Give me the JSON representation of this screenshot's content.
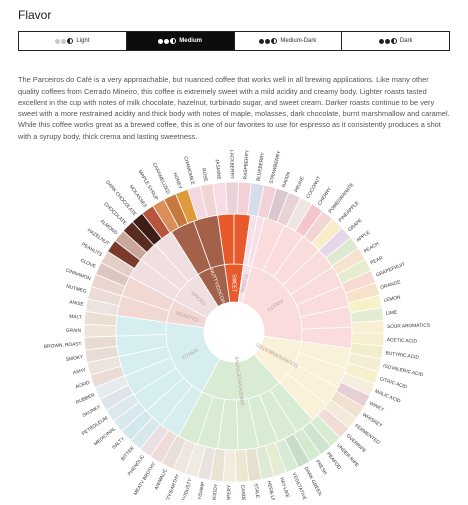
{
  "page": {
    "title": "Flavor"
  },
  "roast": {
    "options": [
      {
        "label": "Light",
        "dots": [
          "#c8c8c8",
          "#c8c8c8",
          "half"
        ],
        "active": false
      },
      {
        "label": "Medium",
        "dots": [
          "#ffffff",
          "#ffffff",
          "half"
        ],
        "active": true
      },
      {
        "label": "Medium-Dark",
        "dots": [
          "#222222",
          "#222222",
          "half"
        ],
        "active": false
      },
      {
        "label": "Dark",
        "dots": [
          "#222222",
          "#222222",
          "half"
        ],
        "active": false
      }
    ]
  },
  "description": "The Parceiros do Café is a very approachable, but nuanced coffee that works well in all brewing applications. Like many other quality coffees from Cerrado Mineiro, this coffee is extremely sweet with a mild acidity and creamy body. Lighter roasts tasted excellent in the cup with notes of milk chocolate, hazelnut, turbinado sugar, and sweet cream. Darker roasts continue to be very sweet with a more restrained acidity and thick body with notes of maple, molasses, dark chocolate, burnt marshmallow and caramel. While this coffee works great as a brewed coffee, this is one of our favorites to use for espresso as it consistently produces a shot with a syrupy body, thick crema and lasting sweetness.",
  "wheel": {
    "inner": [
      {
        "label": "SWEET",
        "color": "#e85a2c",
        "highlight": true
      },
      {
        "label": "NUTTY/COCOA",
        "color": "#a4614a",
        "highlight": true
      },
      {
        "label": "SPICES",
        "color": "#efdfe0",
        "highlight": false
      },
      {
        "label": "ROASTED",
        "color": "#f1d8d3",
        "highlight": false
      },
      {
        "label": "OTHER",
        "color": "#d6eef0",
        "highlight": false
      },
      {
        "label": "GREEN/VEGETATIVE",
        "color": "#d8ecd4",
        "highlight": false
      },
      {
        "label": "SOUR/FERMENTED",
        "color": "#f9f1d8",
        "highlight": false
      },
      {
        "label": "FRUITY",
        "color": "#fbdcdc",
        "highlight": false
      },
      {
        "label": "FLORAL",
        "color": "#f8e0ea",
        "highlight": false
      }
    ],
    "outer_labels": [
      "CHAMOMILE",
      "ROSE",
      "JASMINE",
      "BLACKBERRY",
      "RASPBERRY",
      "BLUEBERRY",
      "STRAWBERRY",
      "RAISIN",
      "PRUNE",
      "COCONUT",
      "CHERRY",
      "POMEGRANATE",
      "PINEAPPLE",
      "GRAPE",
      "APPLE",
      "PEACH",
      "PEAR",
      "GRAPEFRUIT",
      "ORANGE",
      "LEMON",
      "LIME",
      "SOUR AROMATICS",
      "ACETIC ACID",
      "BUTYRIC ACID",
      "ISOVALERIC ACID",
      "CITRIC ACID",
      "MALIC ACID",
      "WINEY",
      "WHISKEY",
      "FERMENTED",
      "OVERRIPE",
      "UNDER RIPE",
      "PEAPOD",
      "FRESH",
      "DARK GREEN",
      "VEGETATIVE",
      "HAY-LIKE",
      "HERB-LIKE",
      "STALE",
      "CARDBOARD",
      "PAPERY",
      "WOODY",
      "MOLDY/DAMP",
      "MUSTY/DUSTY",
      "MUSTY/EARTHY",
      "ANIMALIC",
      "MEATY BROTHY",
      "PHENOLIC",
      "BITTER",
      "SALTY",
      "MEDICINAL",
      "PETROLEUM",
      "SKUNKY",
      "RUBBER",
      "ACRID",
      "ASHY",
      "SMOKY",
      "BROWN, ROAST",
      "GRAIN",
      "MALT",
      "ANISE",
      "NUTMEG",
      "CINNAMON",
      "CLOVE",
      "PEANUTS",
      "HAZELNUT",
      "ALMOND",
      "CHOCOLATE",
      "DARK CHOCOLATE",
      "MOLASSES",
      "MAPLE SYRUP",
      "CARAMELIZED",
      "HONEY"
    ]
  }
}
